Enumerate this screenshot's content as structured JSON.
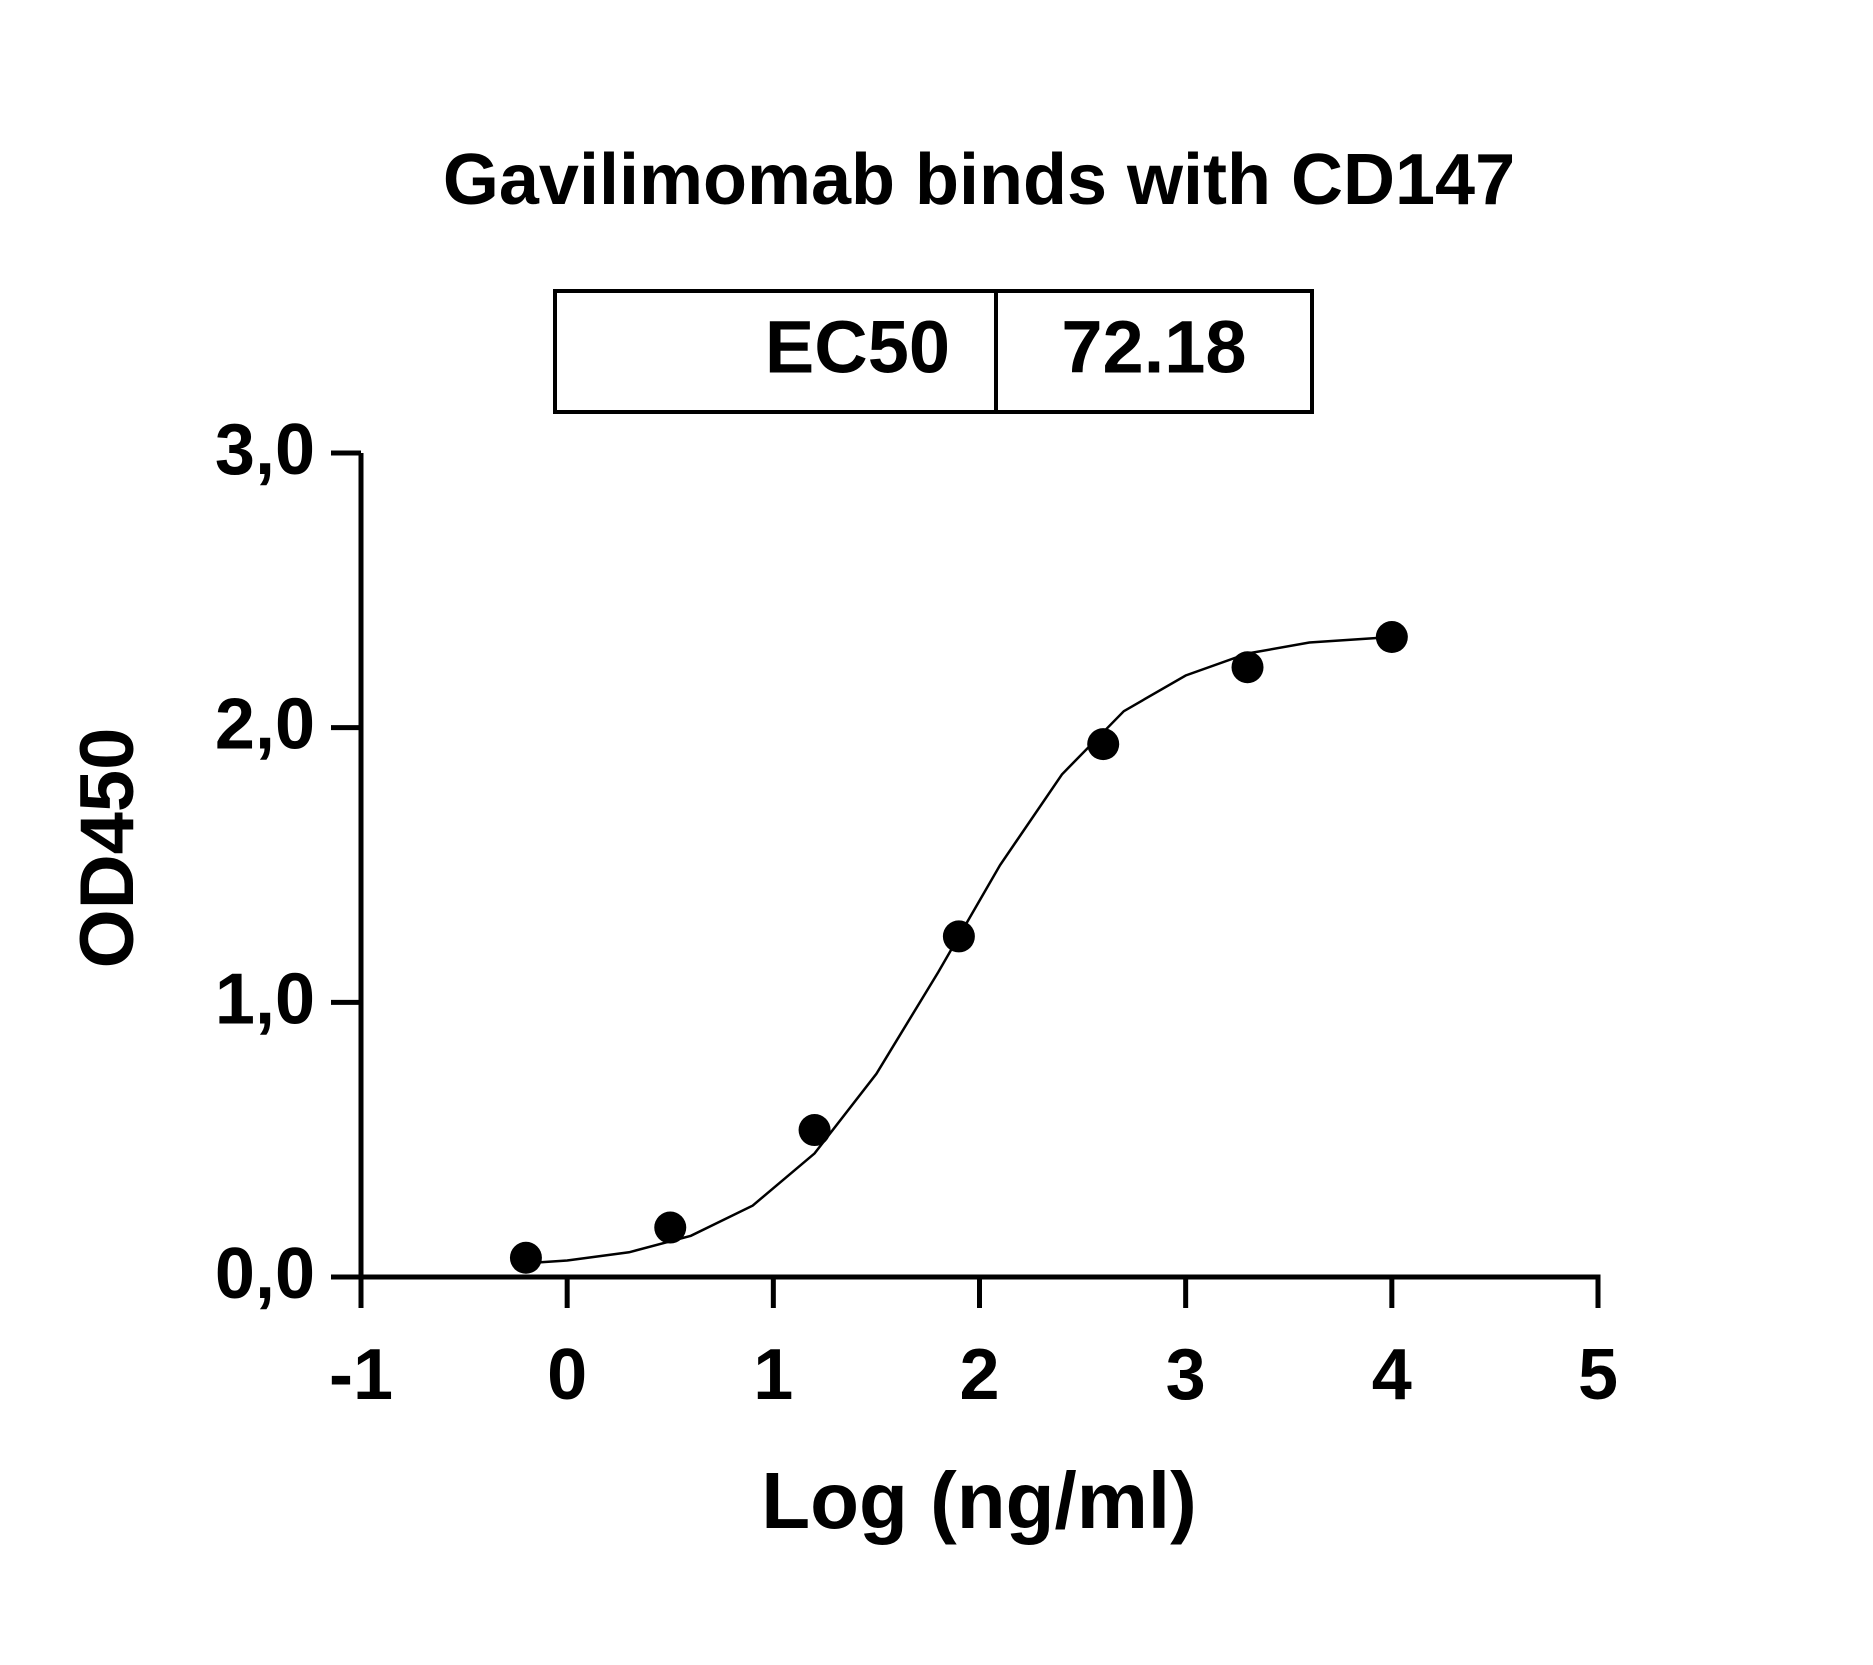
{
  "chart_data": {
    "type": "scatter",
    "title": "Gavilimomab binds with CD147",
    "x_label": "Log (ng/ml)",
    "y_label": "OD450",
    "table": {
      "label": "EC50",
      "value": "72.18"
    },
    "xlim": [
      -1,
      5
    ],
    "xticks": [
      -1,
      0,
      1,
      2,
      3,
      4,
      5
    ],
    "ylim": [
      0,
      3
    ],
    "yticks": [
      {
        "value": 0,
        "label": "0,0"
      },
      {
        "value": 1,
        "label": "1,0"
      },
      {
        "value": 2,
        "label": "2,0"
      },
      {
        "value": 3,
        "label": "3,0"
      }
    ],
    "color": "#000000",
    "points": {
      "x": [
        -0.2,
        0.5,
        1.2,
        1.9,
        2.6,
        3.3,
        4.0
      ],
      "values": [
        0.07,
        0.18,
        0.535,
        1.24,
        1.94,
        2.22,
        2.33
      ]
    },
    "fit": {
      "x": [
        -0.2,
        0,
        0.3,
        0.6,
        0.9,
        1.2,
        1.5,
        1.8,
        2.1,
        2.4,
        2.7,
        3.0,
        3.3,
        3.6,
        4.0
      ],
      "values": [
        0.05,
        0.06,
        0.09,
        0.15,
        0.26,
        0.45,
        0.74,
        1.11,
        1.5,
        1.83,
        2.06,
        2.19,
        2.27,
        2.31,
        2.33
      ]
    }
  }
}
